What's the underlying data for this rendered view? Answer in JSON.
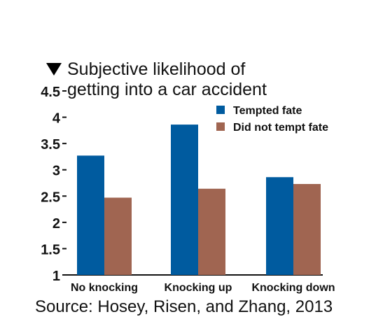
{
  "chart_data": {
    "type": "bar",
    "title_lines": [
      "Subjective likelihood of",
      "getting into a car accident"
    ],
    "categories": [
      "No knocking",
      "Knocking up",
      "Knocking down"
    ],
    "series": [
      {
        "name": "Tempted fate",
        "values": [
          3.27,
          3.86,
          2.86
        ],
        "color": "#005b9f"
      },
      {
        "name": "Did not tempt fate",
        "values": [
          2.47,
          2.64,
          2.73
        ],
        "color": "#a06551"
      }
    ],
    "yticks": [
      1,
      1.5,
      2,
      2.5,
      3,
      3.5,
      4,
      4.5
    ],
    "ytick_labels": [
      "1",
      "1.5",
      "2",
      "2.5",
      "3",
      "3.5",
      "4",
      "4.5"
    ],
    "ylim": [
      1,
      4.5
    ],
    "legend_position": "top-right",
    "grid": false,
    "source": "Source: Hosey, Risen, and Zhang, 2013"
  }
}
